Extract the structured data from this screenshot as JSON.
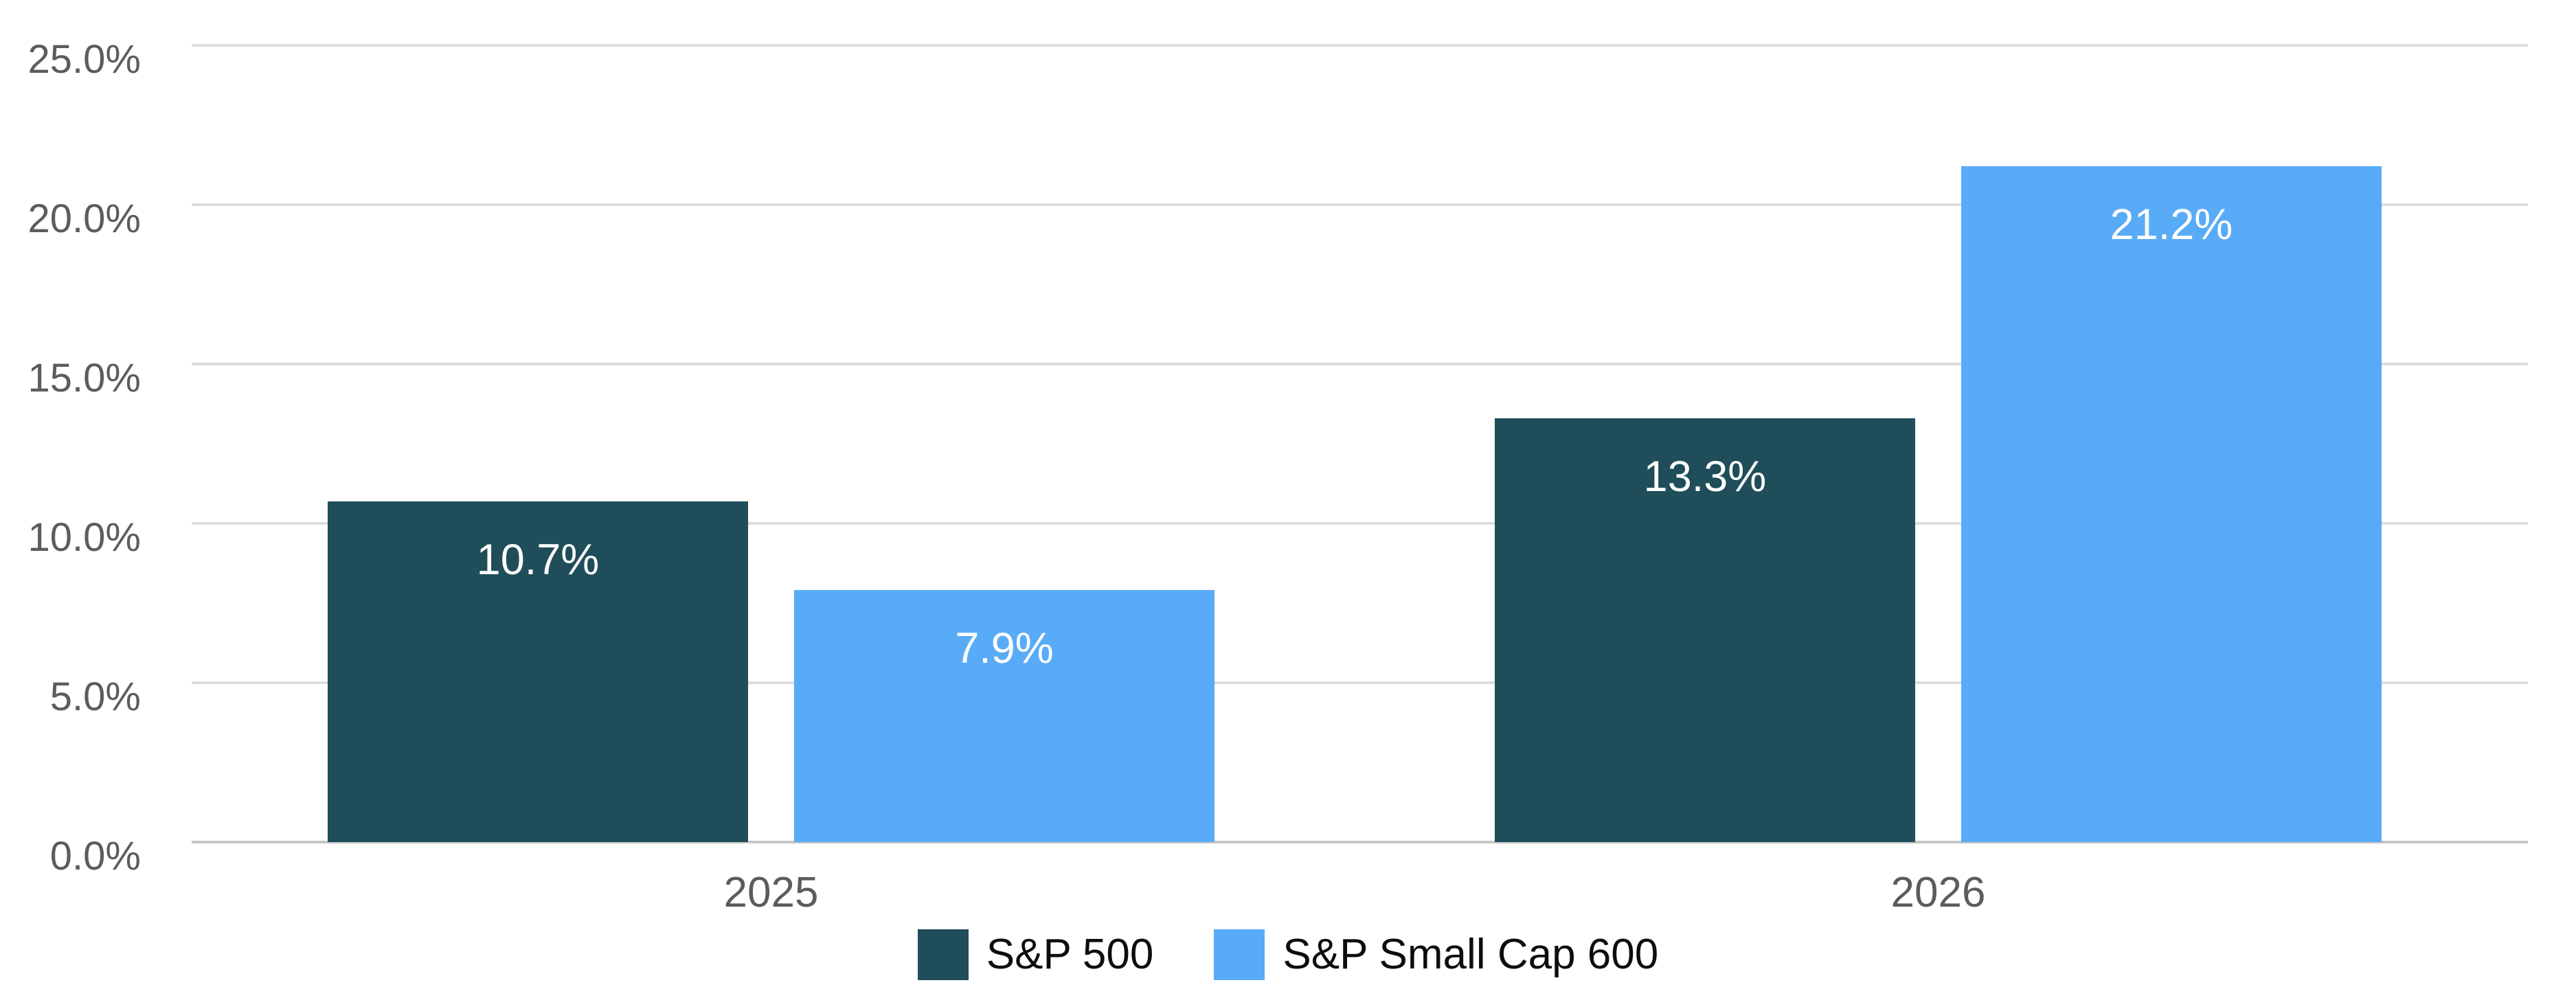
{
  "chart_data": {
    "type": "bar",
    "title": "",
    "categories": [
      "2025",
      "2026"
    ],
    "series": [
      {
        "name": "S&P 500",
        "color": "#1F4D59",
        "values": [
          10.7,
          13.3
        ],
        "value_labels": [
          "10.7%",
          "13.3%"
        ]
      },
      {
        "name": "S&P Small Cap 600",
        "color": "#58ABF7",
        "values": [
          7.9,
          21.2
        ],
        "value_labels": [
          "7.9%",
          "21.2%"
        ]
      }
    ],
    "xlabel": "",
    "ylabel": "",
    "ylim": [
      0,
      25
    ],
    "yticks": [
      {
        "value": 0,
        "label": "0.0%"
      },
      {
        "value": 5,
        "label": "5.0%"
      },
      {
        "value": 10,
        "label": "10.0%"
      },
      {
        "value": 15,
        "label": "15.0%"
      },
      {
        "value": 20,
        "label": "20.0%"
      },
      {
        "value": 25,
        "label": "25.0%"
      }
    ],
    "grid": "horizontal",
    "legend_position": "bottom",
    "value_label_color": "#FFFFFF",
    "axis_text_color": "#5C5C5C",
    "legend_text_color": "#0D0D0D",
    "gridline_color": "#DDDDDD",
    "baseline_color": "#C6C6C6",
    "background_color": "#FFFFFF"
  }
}
